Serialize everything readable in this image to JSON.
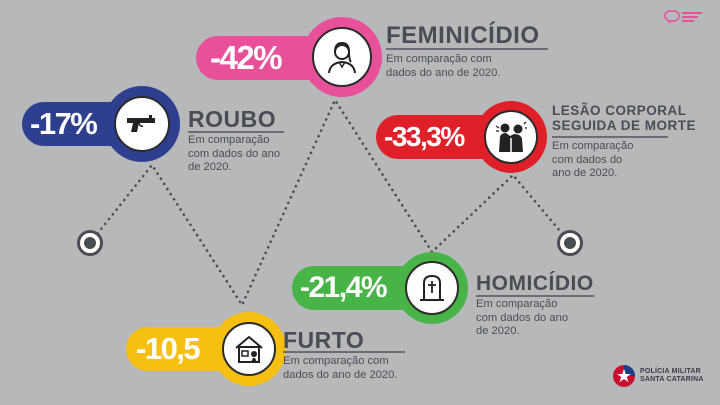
{
  "colors": {
    "background": "#b6b8ba",
    "feminicidio": "#e8509a",
    "roubo": "#2f3f8f",
    "lesao": "#e02028",
    "furto": "#f5c012",
    "homicidio": "#48b448",
    "text": "#4a4e53"
  },
  "items": [
    {
      "key": "feminicidio",
      "value": "-42%",
      "title": "FEMINICÍDIO",
      "title2": "",
      "desc": [
        "Em comparação com",
        "dados do ano de 2020."
      ],
      "icon": "woman-icon"
    },
    {
      "key": "roubo",
      "value": "-17%",
      "title": "ROUBO",
      "title2": "",
      "desc": [
        "Em comparação",
        "com dados do ano",
        "de 2020."
      ],
      "icon": "gun-icon"
    },
    {
      "key": "lesao",
      "value": "-33,3%",
      "title": "LESÃO CORPORAL",
      "title2": "SEGUIDA DE MORTE",
      "desc": [
        "Em comparação",
        "com dados do",
        "ano de 2020."
      ],
      "icon": "fight-icon"
    },
    {
      "key": "furto",
      "value": "-10,5",
      "title": "FURTO",
      "title2": "",
      "desc": [
        "Em comparação com",
        "dados do ano de 2020."
      ],
      "icon": "house-icon"
    },
    {
      "key": "homicidio",
      "value": "-21,4%",
      "title": "HOMICÍDIO",
      "title2": "",
      "desc": [
        "Em comparação",
        "com dados do ano",
        "de 2020."
      ],
      "icon": "tombstone-icon"
    }
  ],
  "logos": {
    "top": "Canal de Comunicação Social",
    "bottom_line1": "POLÍCIA MILITAR",
    "bottom_line2": "SANTA CATARINA"
  }
}
